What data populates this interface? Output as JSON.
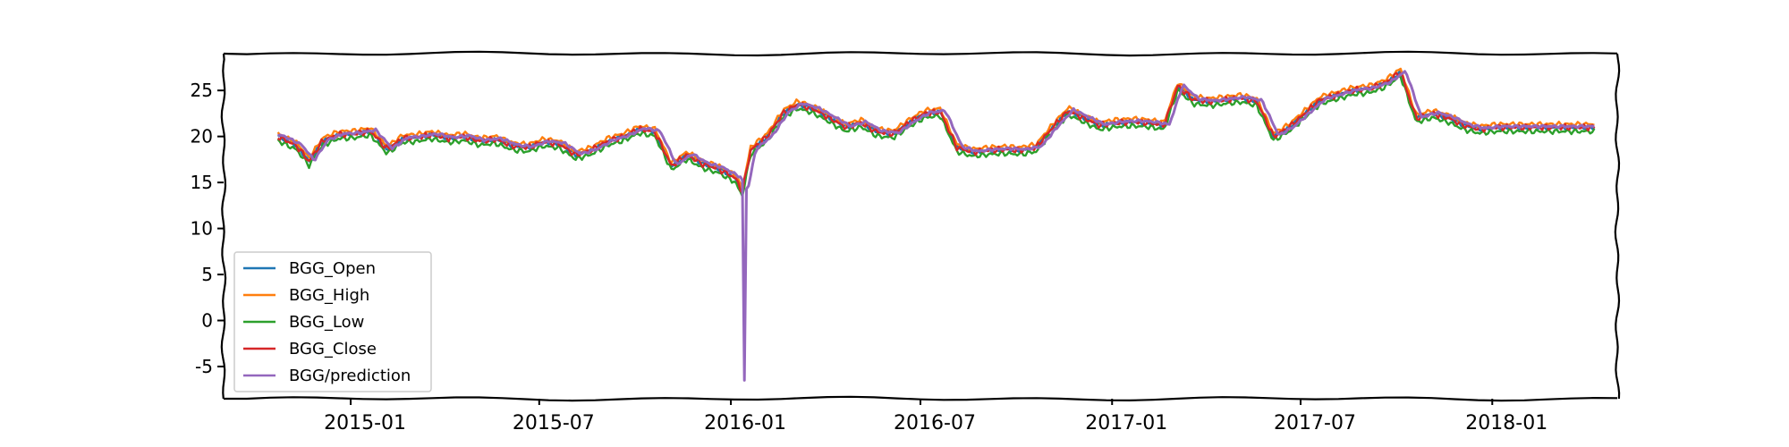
{
  "chart_data": {
    "type": "line",
    "xlim": [
      "2014-09-01",
      "2018-05-01"
    ],
    "ylim": [
      -8.5,
      29
    ],
    "x_ticks": [
      "2015-01",
      "2015-07",
      "2016-01",
      "2016-07",
      "2017-01",
      "2017-07",
      "2018-01"
    ],
    "y_ticks": [
      25,
      20,
      15,
      10,
      5,
      0,
      -5
    ],
    "legend": {
      "location": "lower-left"
    },
    "grid": false,
    "base_curve": {
      "x": [
        "2014-10-23",
        "2014-11-10",
        "2014-11-22",
        "2014-12-05",
        "2014-12-20",
        "2015-01-05",
        "2015-01-20",
        "2015-02-05",
        "2015-02-20",
        "2015-03-05",
        "2015-03-20",
        "2015-04-05",
        "2015-04-20",
        "2015-05-05",
        "2015-05-20",
        "2015-06-05",
        "2015-06-20",
        "2015-07-05",
        "2015-07-20",
        "2015-08-05",
        "2015-08-20",
        "2015-09-05",
        "2015-09-20",
        "2015-10-05",
        "2015-10-20",
        "2015-11-05",
        "2015-11-20",
        "2015-12-05",
        "2015-12-20",
        "2016-01-05",
        "2016-01-12",
        "2016-01-20",
        "2016-02-05",
        "2016-02-20",
        "2016-03-05",
        "2016-03-20",
        "2016-04-05",
        "2016-04-20",
        "2016-05-05",
        "2016-05-20",
        "2016-06-05",
        "2016-06-20",
        "2016-07-05",
        "2016-07-20",
        "2016-08-05",
        "2016-08-20",
        "2016-09-05",
        "2016-09-20",
        "2016-10-05",
        "2016-10-20",
        "2016-11-05",
        "2016-11-20",
        "2016-12-05",
        "2016-12-20",
        "2017-01-05",
        "2017-01-20",
        "2017-02-05",
        "2017-02-20",
        "2017-03-05",
        "2017-03-20",
        "2017-04-05",
        "2017-04-20",
        "2017-05-05",
        "2017-05-20",
        "2017-06-05",
        "2017-06-20",
        "2017-07-05",
        "2017-07-20",
        "2017-08-05",
        "2017-08-20",
        "2017-09-05",
        "2017-09-20",
        "2017-10-05",
        "2017-10-20",
        "2017-11-05",
        "2017-11-20",
        "2017-12-05",
        "2017-12-20",
        "2018-01-05",
        "2018-01-20",
        "2018-02-05",
        "2018-02-20",
        "2018-03-05",
        "2018-03-20",
        "2018-04-10"
      ],
      "y": [
        20.0,
        19.0,
        17.3,
        19.5,
        20.2,
        20.3,
        20.6,
        18.6,
        19.8,
        19.9,
        20.2,
        19.8,
        20.0,
        19.5,
        19.7,
        19.0,
        18.8,
        19.4,
        19.2,
        18.0,
        18.5,
        19.5,
        20.0,
        20.8,
        20.5,
        16.8,
        18.0,
        17.0,
        16.5,
        15.5,
        14.0,
        18.5,
        20.0,
        22.5,
        23.5,
        23.0,
        22.0,
        21.0,
        21.5,
        20.5,
        20.3,
        21.5,
        22.5,
        22.7,
        18.8,
        18.3,
        18.5,
        18.6,
        18.5,
        18.8,
        21.0,
        22.8,
        22.0,
        21.2,
        21.5,
        21.6,
        21.5,
        21.2,
        25.5,
        24.0,
        23.8,
        24.0,
        24.2,
        23.8,
        20.0,
        21.0,
        22.5,
        24.0,
        24.5,
        25.0,
        25.2,
        25.8,
        27.0,
        22.0,
        22.5,
        22.0,
        21.2,
        20.8,
        21.0,
        21.0,
        21.0,
        21.0,
        21.0,
        21.0,
        21.0
      ]
    },
    "series": [
      {
        "name": "BGG_Open",
        "color": "#1f77b4",
        "offset": 0.0,
        "lag_days": 0,
        "jitter": 0.25
      },
      {
        "name": "BGG_High",
        "color": "#ff7f0e",
        "offset": 0.35,
        "lag_days": 0,
        "jitter": 0.25
      },
      {
        "name": "BGG_Low",
        "color": "#2ca02c",
        "offset": -0.45,
        "lag_days": 0,
        "jitter": 0.3
      },
      {
        "name": "BGG_Close",
        "color": "#d62728",
        "offset": 0.0,
        "lag_days": 0,
        "jitter": 0.35
      },
      {
        "name": "BGG/prediction",
        "color": "#9467bd",
        "offset": 0.1,
        "lag_days": 5,
        "jitter": 0.15,
        "dip": {
          "x": "2016-01-14",
          "y": -6.5
        }
      }
    ]
  }
}
